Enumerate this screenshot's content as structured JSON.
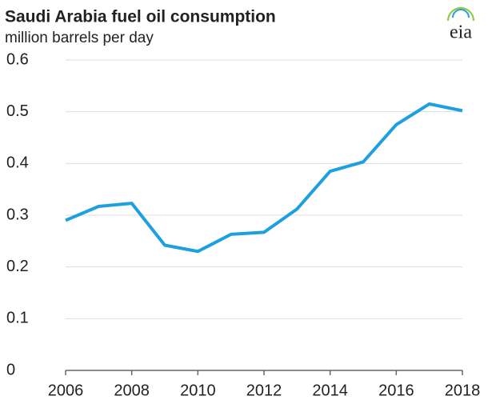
{
  "chart_data": {
    "type": "line",
    "title": "Saudi Arabia fuel oil consumption",
    "subtitle": "million barrels per day",
    "logo": "eia",
    "x": [
      2006,
      2007,
      2008,
      2009,
      2010,
      2011,
      2012,
      2013,
      2014,
      2015,
      2016,
      2017,
      2018
    ],
    "series": [
      {
        "name": "Saudi Arabia fuel oil consumption",
        "color": "#1ea0e0",
        "values": [
          0.29,
          0.317,
          0.323,
          0.242,
          0.23,
          0.263,
          0.267,
          0.312,
          0.385,
          0.403,
          0.475,
          0.515,
          0.502
        ]
      }
    ],
    "xlim": [
      2006,
      2018
    ],
    "xticks": [
      2006,
      2008,
      2010,
      2012,
      2014,
      2016,
      2018
    ],
    "ylim": [
      0,
      0.6
    ],
    "yticks": [
      0,
      0.1,
      0.2,
      0.3,
      0.4,
      0.5,
      0.6
    ],
    "grid": true
  }
}
